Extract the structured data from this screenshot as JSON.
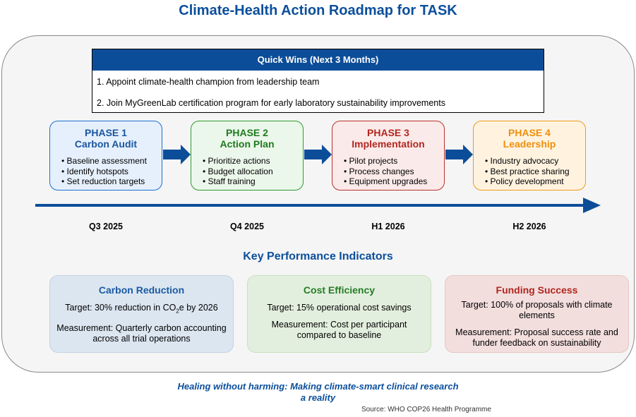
{
  "title": "Climate-Health Action Roadmap for TASK",
  "quick_wins": {
    "header": "Quick Wins (Next 3 Months)",
    "items": [
      "1. Appoint climate-health champion from leadership team",
      "2. Join MyGreenLab certification program for early laboratory sustainability improvements"
    ]
  },
  "phases": [
    {
      "number": "PHASE 1",
      "name": "Carbon Audit",
      "items": [
        "Baseline assessment",
        "Identify hotspots",
        "Set reduction targets"
      ],
      "date": "Q3 2025",
      "color": "#1b6fd0"
    },
    {
      "number": "PHASE 2",
      "name": "Action Plan",
      "items": [
        "Prioritize actions",
        "Budget allocation",
        "Staff training"
      ],
      "date": "Q4 2025",
      "color": "#2e9b2e"
    },
    {
      "number": "PHASE 3",
      "name": "Implementation",
      "items": [
        "Pilot projects",
        "Process changes",
        "Equipment upgrades"
      ],
      "date": "H1 2026",
      "color": "#b8322c"
    },
    {
      "number": "PHASE 4",
      "name": "Leadership",
      "items": [
        "Industry advocacy",
        "Best practice sharing",
        "Policy development"
      ],
      "date": "H2 2026",
      "color": "#f09a1a"
    }
  ],
  "kpi_title": "Key Performance Indicators",
  "kpis": [
    {
      "title": "Carbon Reduction",
      "target_prefix": "Target: 30% reduction in CO",
      "target_sub": "2",
      "target_suffix": "e by 2026",
      "measurement": "Measurement: Quarterly carbon accounting across all trial operations"
    },
    {
      "title": "Cost Efficiency",
      "target": "Target: 15% operational cost savings",
      "measurement": "Measurement: Cost per participant compared to baseline"
    },
    {
      "title": "Funding Success",
      "target": "Target: 100% of proposals with climate elements",
      "measurement": "Measurement: Proposal success rate and funder feedback on sustainability"
    }
  ],
  "tagline": "Healing without harming: Making climate-smart clinical research a reality",
  "source": "Source: WHO COP26 Health Programme",
  "colors": {
    "brand": "#0b4f9c",
    "timeline": "#0c4d99"
  }
}
